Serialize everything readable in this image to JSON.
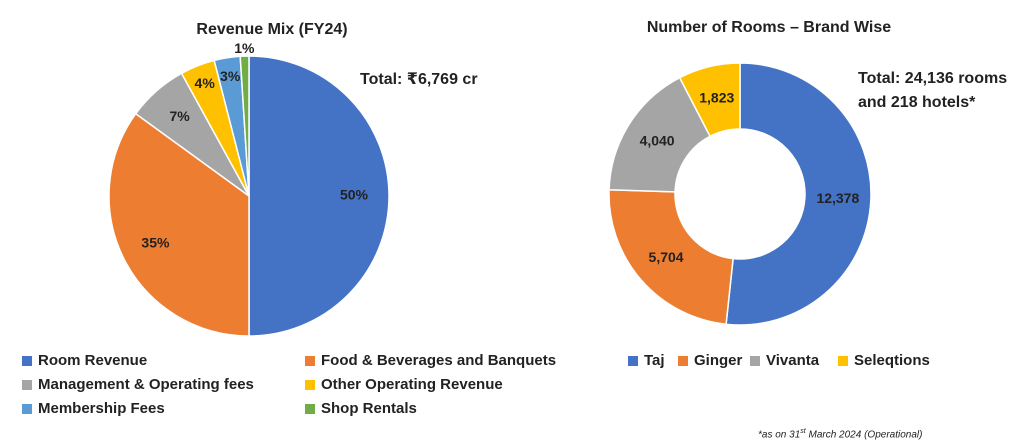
{
  "chart_data": [
    {
      "type": "pie",
      "title": "Revenue Mix (FY24)",
      "annotation": "Total: ₹6,769 cr",
      "categories": [
        "Room Revenue",
        "Food & Beverages and Banquets",
        "Management & Operating fees",
        "Other Operating Revenue",
        "Membership Fees",
        "Shop Rentals"
      ],
      "values": [
        50,
        35,
        7,
        4,
        3,
        1
      ],
      "value_labels": [
        "50%",
        "35%",
        "7%",
        "4%",
        "3%",
        "1%"
      ],
      "colors": [
        "#4472c4",
        "#ed7d31",
        "#a5a5a5",
        "#ffc000",
        "#5b9bd5",
        "#70ad47"
      ]
    },
    {
      "type": "donut",
      "title": "Number of Rooms – Brand Wise",
      "annotation": [
        "Total: 24,136 rooms",
        "and 218 hotels*"
      ],
      "categories": [
        "Taj",
        "Ginger",
        "Vivanta",
        "Seleqtions"
      ],
      "values": [
        12378,
        5704,
        4040,
        1823
      ],
      "value_labels": [
        "12,378",
        "5,704",
        "4,040",
        "1,823"
      ],
      "colors": [
        "#4472c4",
        "#ed7d31",
        "#a5a5a5",
        "#ffc000"
      ]
    }
  ],
  "footnote": [
    "*as on 31",
    "st",
    "March 2024 (Operational)"
  ]
}
